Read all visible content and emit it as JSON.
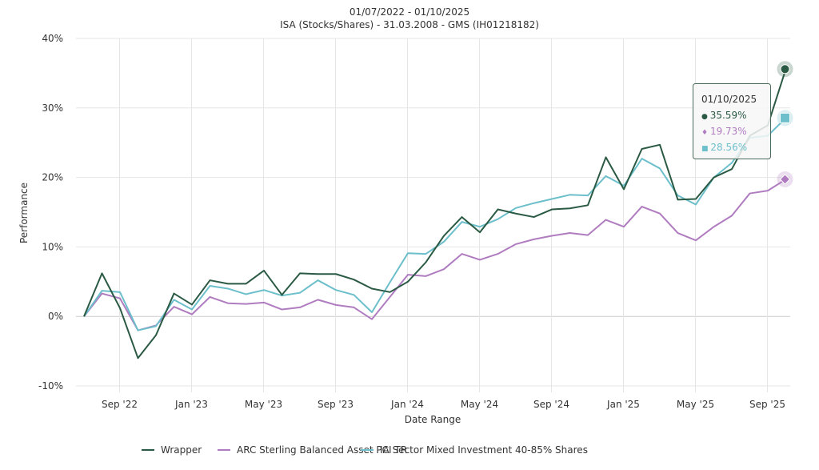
{
  "chart_data": {
    "type": "line",
    "title": "01/07/2022 - 01/10/2025",
    "subtitle": "ISA (Stocks/Shares) - 31.03.2008 - GMS (IH01218182)",
    "xlabel": "Date Range",
    "ylabel": "Performance",
    "ylim": [
      -10,
      40
    ],
    "yticks": [
      -10,
      0,
      10,
      20,
      30,
      40
    ],
    "ytick_labels": [
      "-10%",
      "0%",
      "10%",
      "20%",
      "30%",
      "40%"
    ],
    "grid": true,
    "legend_position": "bottom",
    "x": [
      "Jul '22",
      "Aug '22",
      "Sep '22",
      "Oct '22",
      "Nov '22",
      "Dec '22",
      "Jan '23",
      "Feb '23",
      "Mar '23",
      "Apr '23",
      "May '23",
      "Jun '23",
      "Jul '23",
      "Aug '23",
      "Sep '23",
      "Oct '23",
      "Nov '23",
      "Dec '23",
      "Jan '24",
      "Feb '24",
      "Mar '24",
      "Apr '24",
      "May '24",
      "Jun '24",
      "Jul '24",
      "Aug '24",
      "Sep '24",
      "Oct '24",
      "Nov '24",
      "Dec '24",
      "Jan '25",
      "Feb '25",
      "Mar '25",
      "Apr '25",
      "May '25",
      "Jun '25",
      "Jul '25",
      "Aug '25",
      "Sep '25",
      "Oct '25"
    ],
    "xticks": [
      {
        "index": 2,
        "label": "Sep '22"
      },
      {
        "index": 6,
        "label": "Jan '23"
      },
      {
        "index": 10,
        "label": "May '23"
      },
      {
        "index": 14,
        "label": "Sep '23"
      },
      {
        "index": 18,
        "label": "Jan '24"
      },
      {
        "index": 22,
        "label": "May '24"
      },
      {
        "index": 26,
        "label": "Sep '24"
      },
      {
        "index": 30,
        "label": "Jan '25"
      },
      {
        "index": 34,
        "label": "May '25"
      },
      {
        "index": 38,
        "label": "Sep '25"
      }
    ],
    "series": [
      {
        "name": "Wrapper",
        "color": "#2b5a44",
        "marker": "circle",
        "values": [
          0,
          6.2,
          1.2,
          -6.0,
          -2.7,
          3.3,
          1.7,
          5.2,
          4.7,
          4.7,
          6.6,
          3.1,
          6.2,
          6.1,
          6.1,
          5.3,
          4.0,
          3.5,
          5.0,
          7.8,
          11.6,
          14.3,
          12.1,
          15.4,
          14.8,
          14.3,
          15.4,
          15.55,
          16.0,
          22.9,
          18.3,
          24.1,
          24.7,
          16.8,
          16.9,
          20.0,
          21.2,
          26.0,
          27.5,
          35.59
        ]
      },
      {
        "name": "ARC Sterling Balanced Asset PCI TR",
        "color": "#b07cc0",
        "marker": "diamond",
        "values": [
          0,
          3.3,
          2.6,
          -2.0,
          -1.3,
          1.4,
          0.3,
          2.8,
          1.9,
          1.8,
          2.0,
          1.0,
          1.3,
          2.4,
          1.65,
          1.3,
          -0.4,
          2.8,
          6.0,
          5.8,
          6.8,
          9.0,
          8.15,
          9.0,
          10.4,
          11.1,
          11.6,
          12.0,
          11.7,
          13.9,
          12.9,
          15.8,
          14.8,
          12.0,
          10.95,
          12.9,
          14.5,
          17.7,
          18.1,
          19.73
        ]
      },
      {
        "name": "IA Sector Mixed Investment 40-85% Shares",
        "color": "#6cbfcb",
        "marker": "square",
        "values": [
          0,
          3.7,
          3.5,
          -2.0,
          -1.4,
          2.4,
          1.0,
          4.4,
          4.0,
          3.2,
          3.8,
          3.0,
          3.4,
          5.2,
          3.8,
          3.1,
          0.6,
          4.9,
          9.1,
          9.0,
          10.75,
          13.6,
          12.9,
          14.0,
          15.6,
          16.3,
          16.9,
          17.5,
          17.4,
          20.2,
          18.8,
          22.7,
          21.3,
          17.4,
          16.1,
          20.0,
          22.1,
          25.7,
          26.0,
          28.56
        ]
      }
    ],
    "tooltip": {
      "date": "01/10/2025",
      "items": [
        {
          "symbol": "●",
          "text": "35.59%",
          "color": "#2b5a44"
        },
        {
          "symbol": "♦",
          "text": "19.73%",
          "color": "#b07cc0"
        },
        {
          "symbol": "■",
          "text": "28.56%",
          "color": "#6cbfcb"
        }
      ]
    }
  }
}
